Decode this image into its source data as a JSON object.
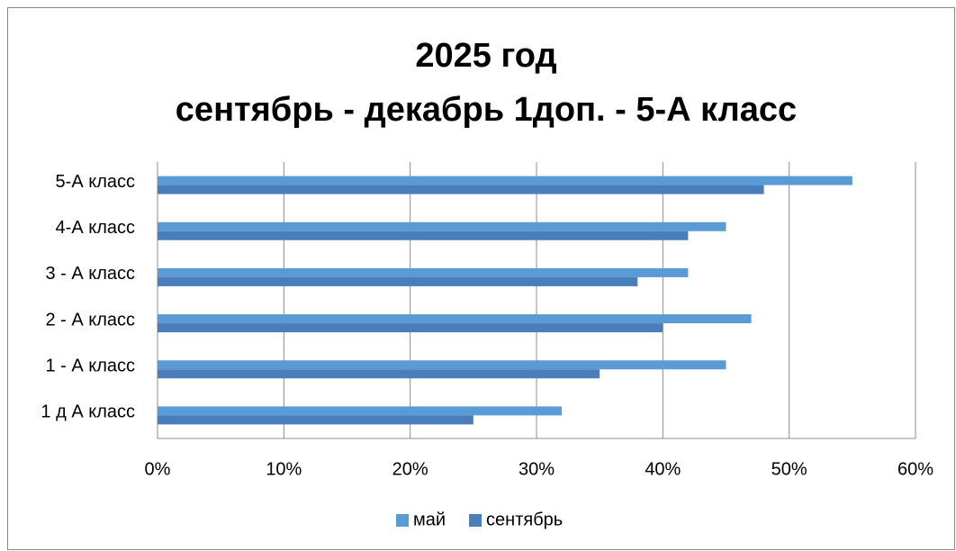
{
  "chart_data": {
    "type": "bar",
    "orientation": "horizontal",
    "title": [
      "2025 год",
      "сентябрь -  декабрь 1доп. - 5-А класс"
    ],
    "categories": [
      "5-А класс",
      "4-А класс",
      "3 - А класс",
      "2 - А класс",
      "1 - А класс",
      "1 д А класс"
    ],
    "series": [
      {
        "name": "май",
        "color": "#5b9bd5",
        "values": [
          55,
          45,
          42,
          47,
          45,
          32
        ]
      },
      {
        "name": "сентябрь",
        "color": "#4a7ebb",
        "values": [
          48,
          42,
          38,
          40,
          35,
          25
        ]
      }
    ],
    "xlim": [
      0,
      60
    ],
    "xticks": [
      {
        "value": 0,
        "label": "0%"
      },
      {
        "value": 10,
        "label": "10%"
      },
      {
        "value": 20,
        "label": "20%"
      },
      {
        "value": 30,
        "label": "30%"
      },
      {
        "value": 40,
        "label": "40%"
      },
      {
        "value": 50,
        "label": "50%"
      },
      {
        "value": 60,
        "label": "60%"
      }
    ],
    "grid": true,
    "legend": "bottom"
  }
}
